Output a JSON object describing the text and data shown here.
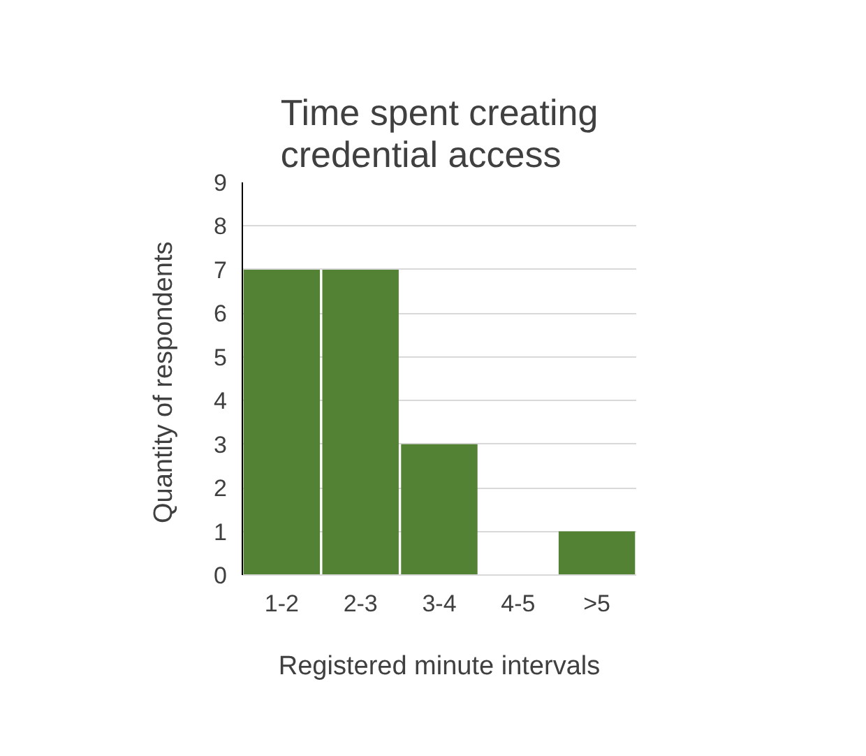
{
  "chart_data": {
    "type": "bar",
    "title": "Time spent creating\ncredential  access",
    "xlabel": "Registered minute intervals",
    "ylabel": "Quantity  of respondents",
    "categories": [
      "1-2",
      "2-3",
      "3-4",
      "4-5",
      ">5"
    ],
    "values": [
      7,
      7,
      3,
      0,
      1
    ],
    "color": "#548235",
    "ylim": [
      0,
      9
    ],
    "yticks": [
      0,
      1,
      2,
      3,
      4,
      5,
      6,
      7,
      8,
      9
    ],
    "grid": "y"
  }
}
